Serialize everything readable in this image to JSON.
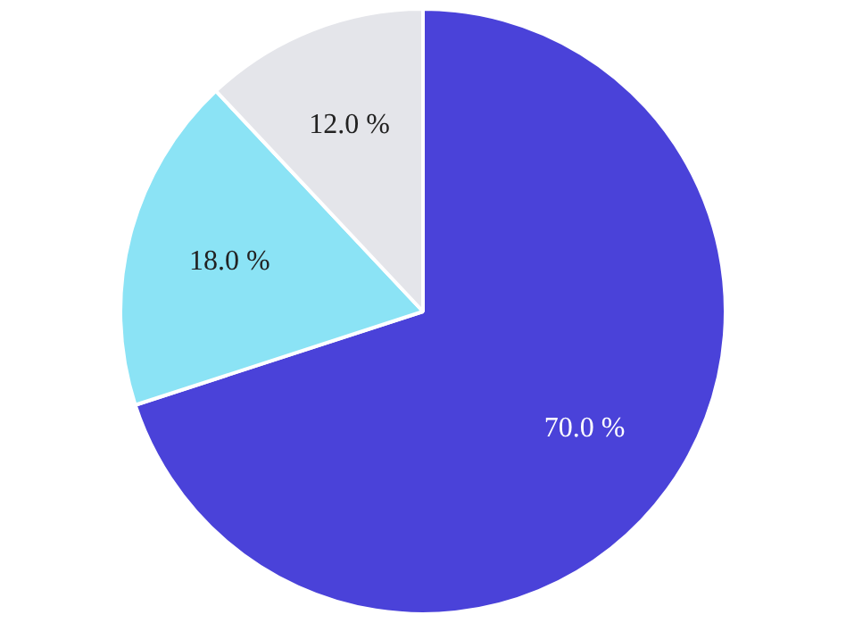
{
  "chart_data": {
    "type": "pie",
    "categories": [
      null,
      null,
      null
    ],
    "values": [
      70,
      18,
      12
    ],
    "colors": [
      "#4a42d9",
      "#8be3f5",
      "#e4e5ea"
    ],
    "value_labels": [
      "70.0 %",
      "18.0 %",
      "12.0 %"
    ],
    "legend": false
  }
}
